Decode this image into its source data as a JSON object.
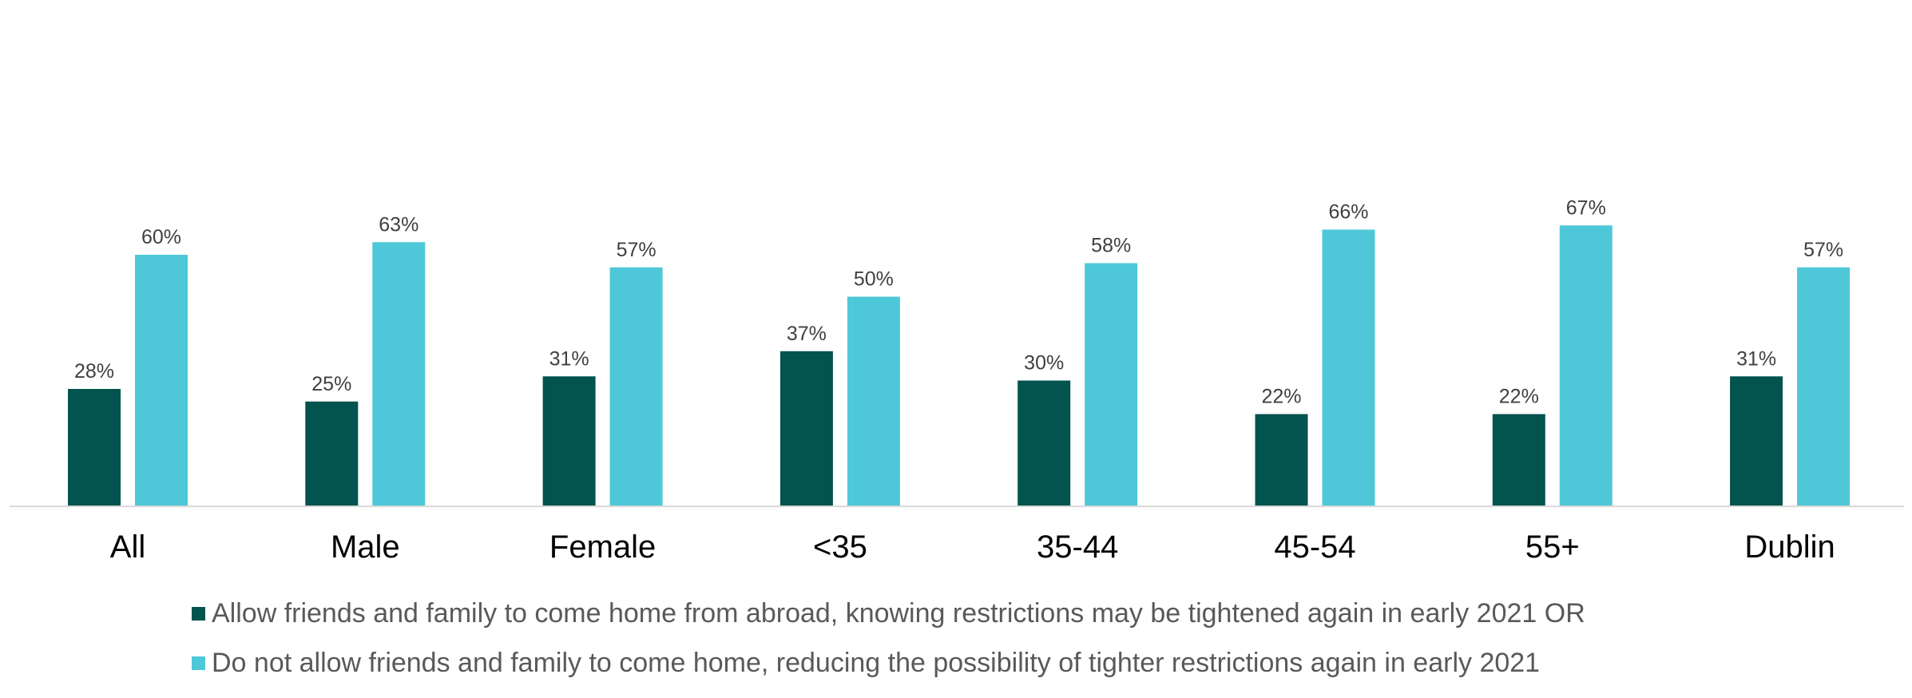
{
  "chart_data": {
    "type": "bar",
    "categories": [
      "All",
      "Male",
      "Female",
      "<35",
      "35-44",
      "45-54",
      "55+",
      "Dublin"
    ],
    "series": [
      {
        "name": "Allow friends and family to come home from abroad, knowing restrictions may be tightened again in early 2021 OR",
        "values": [
          28,
          25,
          31,
          37,
          30,
          22,
          22,
          31
        ],
        "color": "#03534E"
      },
      {
        "name": "Do not allow friends and family to come home, reducing the possibility of tighter restrictions again in early 2021",
        "values": [
          60,
          63,
          57,
          50,
          58,
          66,
          67,
          57
        ],
        "color": "#4EC8D8"
      }
    ],
    "value_suffix": "%",
    "ylim": [
      0,
      70
    ],
    "grid": false,
    "legend_position": "bottom",
    "title": "",
    "xlabel": "",
    "ylabel": ""
  }
}
